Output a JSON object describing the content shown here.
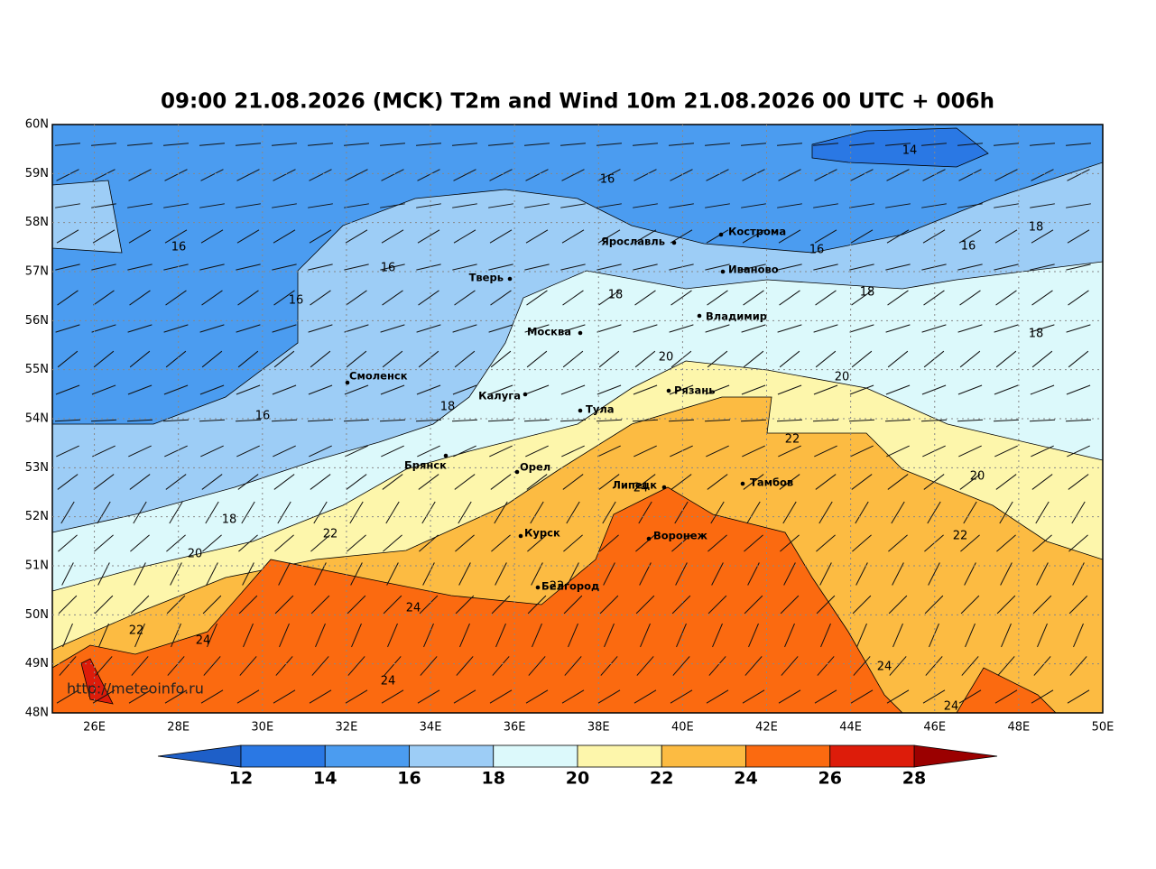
{
  "title": "09:00 21.08.2026 (MCK) T2m and Wind 10m 21.08.2026 00 UTC + 006h",
  "lat_labels": [
    "60N",
    "59N",
    "58N",
    "57N",
    "56N",
    "55N",
    "54N",
    "53N",
    "52N",
    "51N",
    "50N",
    "49N",
    "48N"
  ],
  "lon_labels": [
    "26E",
    "28E",
    "30E",
    "32E",
    "34E",
    "36E",
    "38E",
    "40E",
    "42E",
    "44E",
    "46E",
    "48E",
    "50E"
  ],
  "cities": [
    "Кострома",
    "Ярославль",
    "Иваново",
    "Тверь",
    "Владимир",
    "Москва",
    "Смоленск",
    "Калуга",
    "Рязань",
    "Тула",
    "Брянск",
    "Орел",
    "Липецк",
    "Тамбов",
    "Курск",
    "Воронеж",
    "Белгород"
  ],
  "contour_labels": [
    "16",
    "16",
    "16",
    "16",
    "16",
    "16",
    "16",
    "14",
    "18",
    "18",
    "18",
    "18",
    "18",
    "18",
    "20",
    "20",
    "20",
    "20",
    "22",
    "22",
    "22",
    "22",
    "22",
    "24",
    "24",
    "24",
    "24",
    "24",
    "24"
  ],
  "colorbar_ticks": [
    12,
    14,
    16,
    18,
    20,
    22,
    24,
    26,
    28
  ],
  "watermark": "http://meteoinfo.ru"
}
